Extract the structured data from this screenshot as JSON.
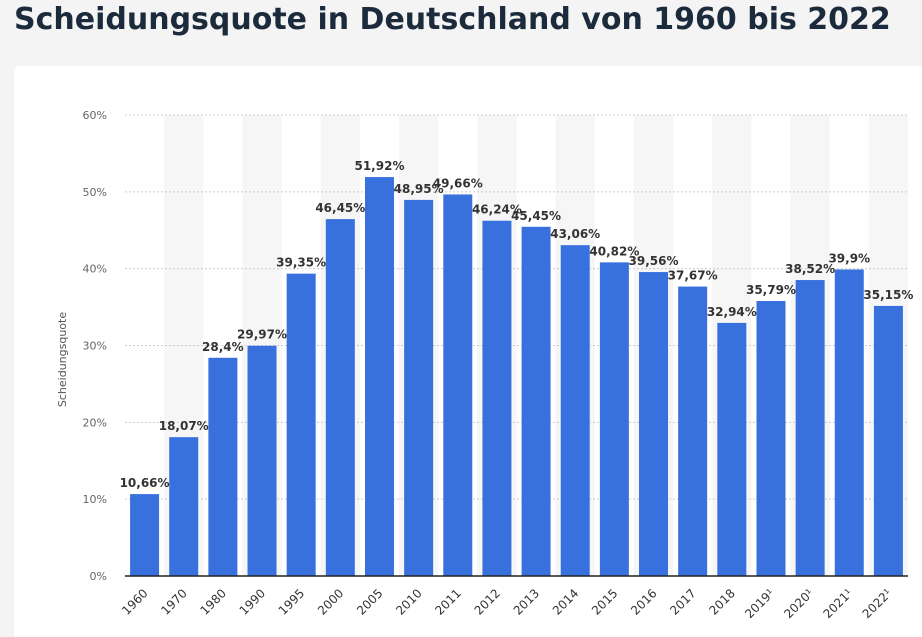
{
  "title": "Scheidungsquote in Deutschland von 1960 bis 2022",
  "colors": {
    "bar": "#3871de",
    "band": "#f6f6f6",
    "grid": "#cccccc",
    "axis": "#222222",
    "title": "#1c2b3c"
  },
  "chart_data": {
    "type": "bar",
    "title": "Scheidungsquote in Deutschland von 1960 bis 2022",
    "xlabel": "",
    "ylabel": "Scheidungsquote",
    "ylim": [
      0,
      60
    ],
    "yticks": [
      0,
      10,
      20,
      30,
      40,
      50,
      60
    ],
    "ytick_labels": [
      "0%",
      "10%",
      "20%",
      "30%",
      "40%",
      "50%",
      "60%"
    ],
    "grid": true,
    "categories": [
      "1960",
      "1970",
      "1980",
      "1990",
      "1995",
      "2000",
      "2005",
      "2010",
      "2011",
      "2012",
      "2013",
      "2014",
      "2015",
      "2016",
      "2017",
      "2018",
      "2019¹",
      "2020¹",
      "2021¹",
      "2022¹"
    ],
    "values": [
      10.66,
      18.07,
      28.4,
      29.97,
      39.35,
      46.45,
      51.92,
      48.95,
      49.66,
      46.24,
      45.45,
      43.06,
      40.82,
      39.56,
      37.67,
      32.94,
      35.79,
      38.52,
      39.9,
      35.15
    ],
    "labels": [
      "10,66%",
      "18,07%",
      "28,4%",
      "29,97%",
      "39,35%",
      "46,45%",
      "51,92%",
      "48,95%",
      "49,66%",
      "46,24%",
      "45,45%",
      "43,06%",
      "40,82%",
      "39,56%",
      "37,67%",
      "32,94%",
      "35,79%",
      "38,52%",
      "39,9%",
      "35,15%"
    ]
  }
}
